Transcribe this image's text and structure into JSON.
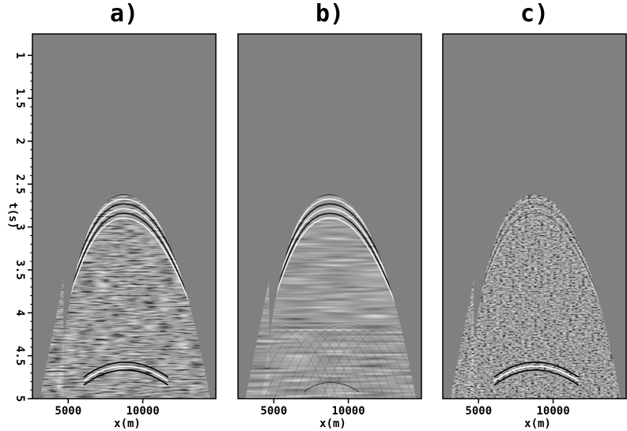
{
  "figure": {
    "panels": [
      {
        "title": "a)",
        "xlabel": "x(m)",
        "xticks": [
          "5000",
          "10000"
        ],
        "style": "noisy"
      },
      {
        "title": "b)",
        "xlabel": "x(m)",
        "xticks": [
          "5000",
          "10000"
        ],
        "style": "clean"
      },
      {
        "title": "c)",
        "xlabel": "x(m)",
        "xticks": [
          "5000",
          "10000"
        ],
        "style": "random"
      }
    ],
    "ylabel": "t(s)",
    "yticks": [
      "1",
      "1.5",
      "2",
      "2.5",
      "3",
      "3.5",
      "4",
      "4.5",
      "5"
    ],
    "colors": {
      "background": "#808080",
      "frame": "#000000"
    }
  }
}
